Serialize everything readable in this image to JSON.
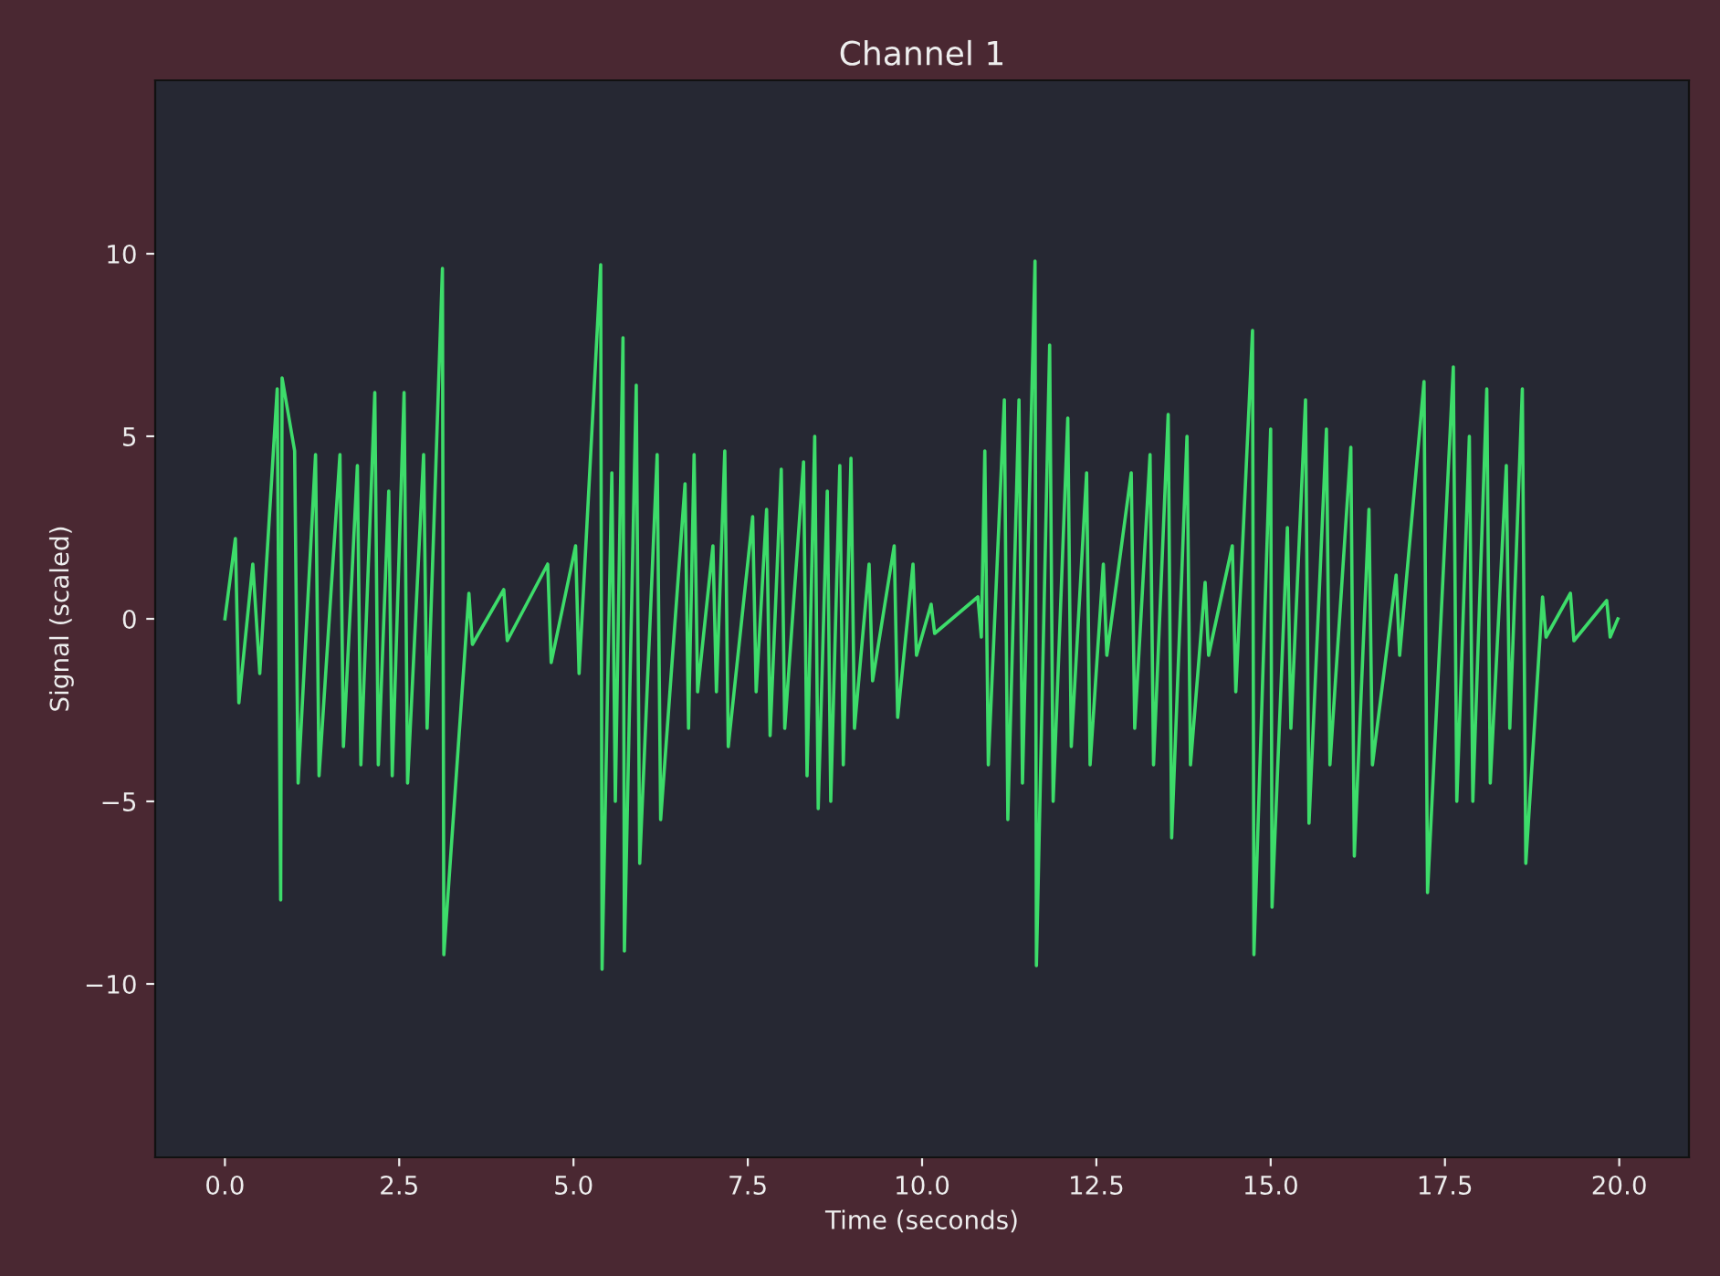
{
  "chart_data": {
    "type": "line",
    "title": "Channel 1",
    "xlabel": "Time (seconds)",
    "ylabel": "Signal (scaled)",
    "xlim": [
      -1,
      21
    ],
    "ylim": [
      -14.75,
      14.75
    ],
    "xticks": [
      {
        "value": 0,
        "label": "0.0"
      },
      {
        "value": 2.5,
        "label": "2.5"
      },
      {
        "value": 5,
        "label": "5.0"
      },
      {
        "value": 7.5,
        "label": "7.5"
      },
      {
        "value": 10,
        "label": "10.0"
      },
      {
        "value": 12.5,
        "label": "12.5"
      },
      {
        "value": 15,
        "label": "15.0"
      },
      {
        "value": 17.5,
        "label": "17.5"
      },
      {
        "value": 20,
        "label": "20.0"
      }
    ],
    "yticks": [
      {
        "value": -10,
        "label": "−10"
      },
      {
        "value": -5,
        "label": "−5"
      },
      0,
      5,
      10
    ],
    "grid": false,
    "marker": "none",
    "line_style": "solid",
    "series": [
      {
        "color": "#3ddc6a",
        "x": [
          0.0,
          0.15,
          0.2,
          0.4,
          0.5,
          0.75,
          0.8,
          0.82,
          1.0,
          1.05,
          1.3,
          1.35,
          1.65,
          1.7,
          1.9,
          1.95,
          2.15,
          2.2,
          2.35,
          2.4,
          2.57,
          2.62,
          2.85,
          2.9,
          3.12,
          3.14,
          3.5,
          3.55,
          4.0,
          4.05,
          4.63,
          4.68,
          5.03,
          5.08,
          5.39,
          5.41,
          5.55,
          5.6,
          5.71,
          5.73,
          5.9,
          5.95,
          6.2,
          6.25,
          6.6,
          6.65,
          6.73,
          6.78,
          7.0,
          7.05,
          7.17,
          7.22,
          7.57,
          7.62,
          7.77,
          7.82,
          7.98,
          8.03,
          8.3,
          8.35,
          8.46,
          8.51,
          8.64,
          8.69,
          8.82,
          8.87,
          8.98,
          9.03,
          9.24,
          9.29,
          9.6,
          9.65,
          9.87,
          9.92,
          10.13,
          10.18,
          10.8,
          10.85,
          10.9,
          10.95,
          11.18,
          11.23,
          11.39,
          11.44,
          11.62,
          11.64,
          11.83,
          11.88,
          12.09,
          12.14,
          12.36,
          12.41,
          12.6,
          12.65,
          13.0,
          13.05,
          13.27,
          13.32,
          13.53,
          13.58,
          13.8,
          13.85,
          14.06,
          14.11,
          14.45,
          14.5,
          14.74,
          14.76,
          15.0,
          15.02,
          15.24,
          15.29,
          15.5,
          15.55,
          15.8,
          15.85,
          16.15,
          16.2,
          16.41,
          16.46,
          16.8,
          16.85,
          17.2,
          17.25,
          17.62,
          17.67,
          17.85,
          17.9,
          18.1,
          18.15,
          18.38,
          18.43,
          18.61,
          18.66,
          18.9,
          18.95,
          19.3,
          19.35,
          19.82,
          19.87,
          19.98
        ],
        "values": [
          0,
          2.2,
          -2.3,
          1.5,
          -1.5,
          6.3,
          -7.7,
          6.6,
          4.6,
          -4.5,
          4.5,
          -4.3,
          4.5,
          -3.5,
          4.2,
          -4,
          6.2,
          -4,
          3.5,
          -4.3,
          6.2,
          -4.5,
          4.5,
          -3,
          9.6,
          -9.2,
          0.7,
          -0.7,
          0.8,
          -0.6,
          1.5,
          -1.2,
          2,
          -1.5,
          9.7,
          -9.6,
          4,
          -5,
          7.7,
          -9.1,
          6.4,
          -6.7,
          4.5,
          -5.5,
          3.7,
          -3,
          4.5,
          -2,
          2,
          -2,
          4.6,
          -3.5,
          2.8,
          -2,
          3,
          -3.2,
          4.1,
          -3,
          4.3,
          -4.3,
          5,
          -5.2,
          3.5,
          -5,
          4.2,
          -4,
          4.4,
          -3,
          1.5,
          -1.7,
          2,
          -2.7,
          1.5,
          -1,
          0.4,
          -0.4,
          0.6,
          -0.5,
          4.6,
          -4,
          6,
          -5.5,
          6,
          -4.5,
          9.8,
          -9.5,
          7.5,
          -5,
          5.5,
          -3.5,
          4,
          -4,
          1.5,
          -1,
          4,
          -3,
          4.5,
          -4,
          5.6,
          -6,
          5,
          -4,
          1,
          -1,
          2,
          -2,
          7.9,
          -9.2,
          5.2,
          -7.9,
          2.5,
          -3,
          6,
          -5.6,
          5.2,
          -4,
          4.7,
          -6.5,
          3,
          -4,
          1.2,
          -1,
          6.5,
          -7.5,
          6.9,
          -5,
          5,
          -5,
          6.3,
          -4.5,
          4.2,
          -3,
          6.3,
          -6.7,
          0.6,
          -0.5,
          0.7,
          -0.6,
          0.5,
          -0.5,
          0
        ]
      }
    ]
  }
}
